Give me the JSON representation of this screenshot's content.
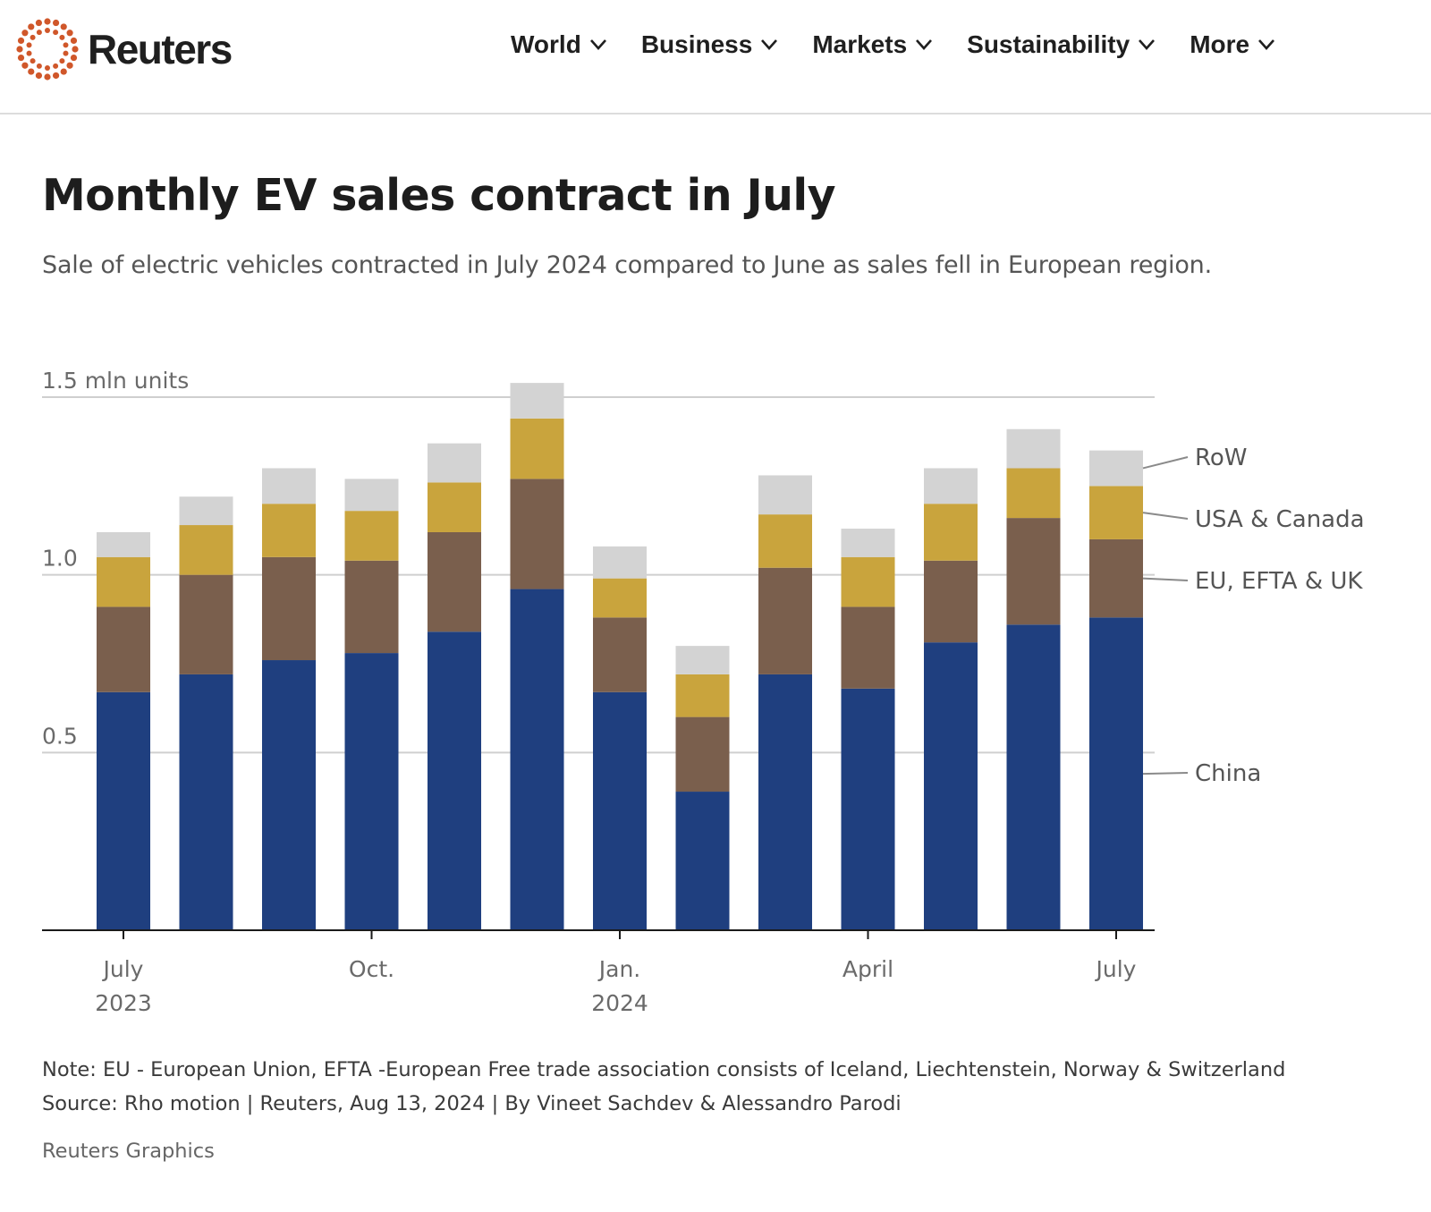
{
  "brand": {
    "name": "Reuters",
    "logo_icon": "reuters-dot-ring-logo",
    "accent_color": "#d0572a"
  },
  "nav": {
    "items": [
      {
        "label": "World",
        "icon": "chevron-down-icon"
      },
      {
        "label": "Business",
        "icon": "chevron-down-icon"
      },
      {
        "label": "Markets",
        "icon": "chevron-down-icon"
      },
      {
        "label": "Sustainability",
        "icon": "chevron-down-icon"
      },
      {
        "label": "More",
        "icon": "chevron-down-icon"
      }
    ]
  },
  "article": {
    "title": "Monthly EV sales contract in July",
    "subtitle": "Sale of electric vehicles contracted in July 2024 compared to June as sales fell in European region.",
    "note": "Note: EU - European Union, EFTA -European Free trade association consists of Iceland, Liechtenstein, Norway & Switzerland",
    "source": "Source: Rho motion | Reuters, Aug 13, 2024 | By Vineet Sachdev & Alessandro Parodi",
    "credit": "Reuters Graphics"
  },
  "chart_data": {
    "type": "bar",
    "stacked": true,
    "ylim": [
      0,
      1.5
    ],
    "y_ticks": [
      {
        "value": 1.5,
        "label": "1.5 mln units"
      },
      {
        "value": 1.0,
        "label": "1.0"
      },
      {
        "value": 0.5,
        "label": "0.5"
      }
    ],
    "grid": true,
    "categories": [
      "Jul 2023",
      "Aug 2023",
      "Sep 2023",
      "Oct 2023",
      "Nov 2023",
      "Dec 2023",
      "Jan 2024",
      "Feb 2024",
      "Mar 2024",
      "Apr 2024",
      "May 2024",
      "Jun 2024",
      "Jul 2024"
    ],
    "x_tick_labels": [
      {
        "index": 0,
        "lines": [
          "July",
          "2023"
        ]
      },
      {
        "index": 3,
        "lines": [
          "Oct."
        ]
      },
      {
        "index": 6,
        "lines": [
          "Jan.",
          "2024"
        ]
      },
      {
        "index": 9,
        "lines": [
          "April"
        ]
      },
      {
        "index": 12,
        "lines": [
          "July"
        ]
      }
    ],
    "legend_placement": "right, direct labels",
    "series": [
      {
        "name": "China",
        "color": "#1f3f7f",
        "values": [
          0.67,
          0.72,
          0.76,
          0.78,
          0.84,
          0.96,
          0.67,
          0.39,
          0.72,
          0.68,
          0.81,
          0.86,
          0.88
        ]
      },
      {
        "name": "EU, EFTA & UK",
        "color": "#7a5f4d",
        "values": [
          0.24,
          0.28,
          0.29,
          0.26,
          0.28,
          0.31,
          0.21,
          0.21,
          0.3,
          0.23,
          0.23,
          0.3,
          0.22
        ]
      },
      {
        "name": "USA & Canada",
        "color": "#c9a43d",
        "values": [
          0.14,
          0.14,
          0.15,
          0.14,
          0.14,
          0.17,
          0.11,
          0.12,
          0.15,
          0.14,
          0.16,
          0.14,
          0.15
        ]
      },
      {
        "name": "RoW",
        "color": "#d3d3d3",
        "values": [
          0.07,
          0.08,
          0.1,
          0.09,
          0.11,
          0.1,
          0.09,
          0.08,
          0.11,
          0.08,
          0.1,
          0.11,
          0.1
        ]
      }
    ]
  }
}
